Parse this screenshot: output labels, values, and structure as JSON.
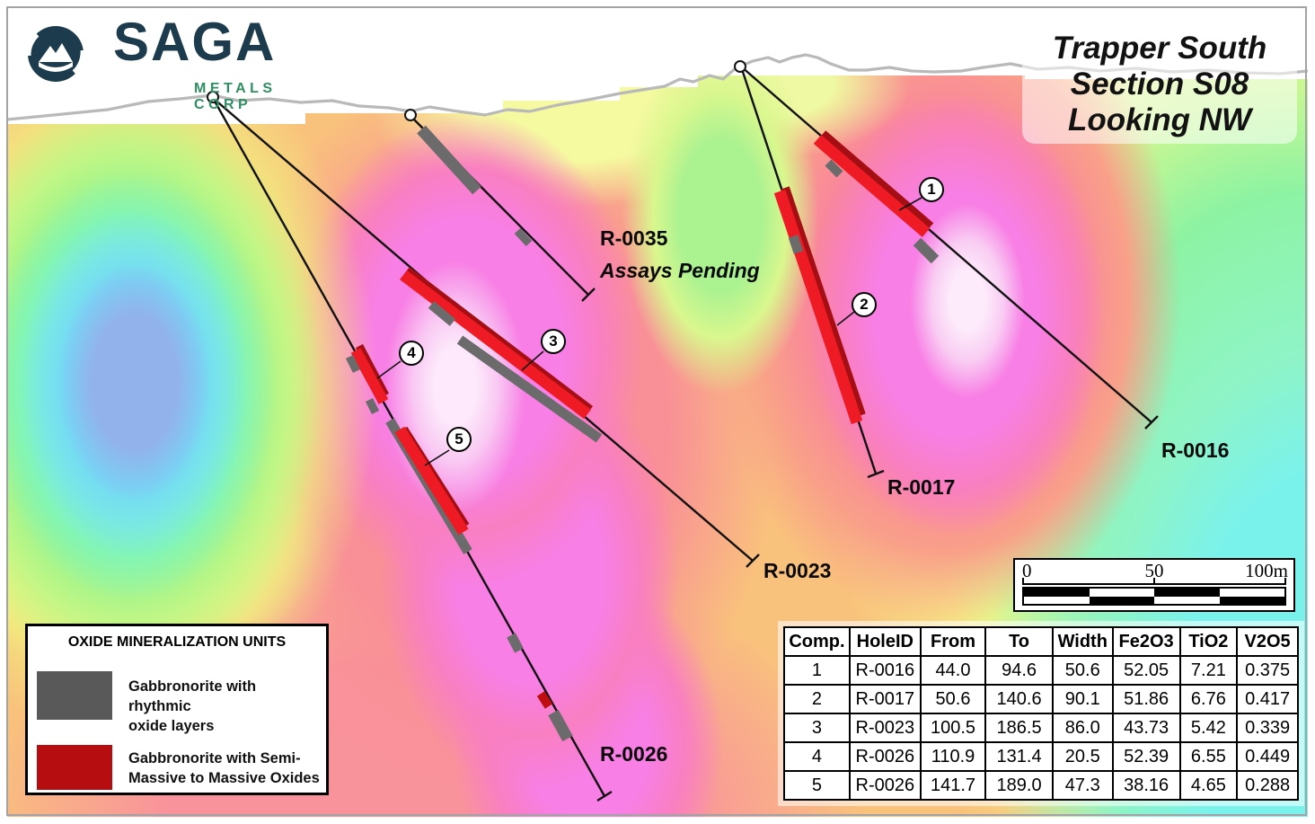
{
  "logo": {
    "brand": "SAGA",
    "tagline": "METALS CORP"
  },
  "title": {
    "line1": "Trapper South",
    "line2": "Section S08",
    "line3": "Looking NW"
  },
  "holes": {
    "h35": {
      "id": "R-0035",
      "note": "Assays Pending"
    },
    "h16": {
      "id": "R-0016"
    },
    "h17": {
      "id": "R-0017"
    },
    "h23": {
      "id": "R-0023"
    },
    "h26": {
      "id": "R-0026"
    }
  },
  "markers": [
    "1",
    "2",
    "3",
    "4",
    "5"
  ],
  "legend": {
    "title": "OXIDE MINERALIZATION UNITS",
    "items": [
      {
        "line1": "Gabbronorite with rhythmic",
        "line2": "oxide layers",
        "color": "#595959"
      },
      {
        "line1": "Gabbronorite with Semi-",
        "line2": "Massive to Massive Oxides",
        "color": "#b60d10"
      }
    ]
  },
  "scalebar": {
    "start": "0",
    "mid": "50",
    "end": "100m"
  },
  "table": {
    "headers": [
      "Comp.",
      "HoleID",
      "From",
      "To",
      "Width",
      "Fe2O3",
      "TiO2",
      "V2O5"
    ],
    "rows": [
      [
        "1",
        "R-0016",
        "44.0",
        "94.6",
        "50.6",
        "52.05",
        "7.21",
        "0.375"
      ],
      [
        "2",
        "R-0017",
        "50.6",
        "140.6",
        "90.1",
        "51.86",
        "6.76",
        "0.417"
      ],
      [
        "3",
        "R-0023",
        "100.5",
        "186.5",
        "86.0",
        "43.73",
        "5.42",
        "0.339"
      ],
      [
        "4",
        "R-0026",
        "110.9",
        "131.4",
        "20.5",
        "52.39",
        "6.55",
        "0.449"
      ],
      [
        "5",
        "R-0026",
        "141.7",
        "189.0",
        "47.3",
        "38.16",
        "4.65",
        "0.288"
      ]
    ]
  },
  "colors": {
    "massive_oxide_red": "#ee1b24",
    "rhythmic_oxide_gray": "#6b6b6b",
    "brand_dark": "#1c3b4d",
    "brand_green": "#2f8f63"
  }
}
